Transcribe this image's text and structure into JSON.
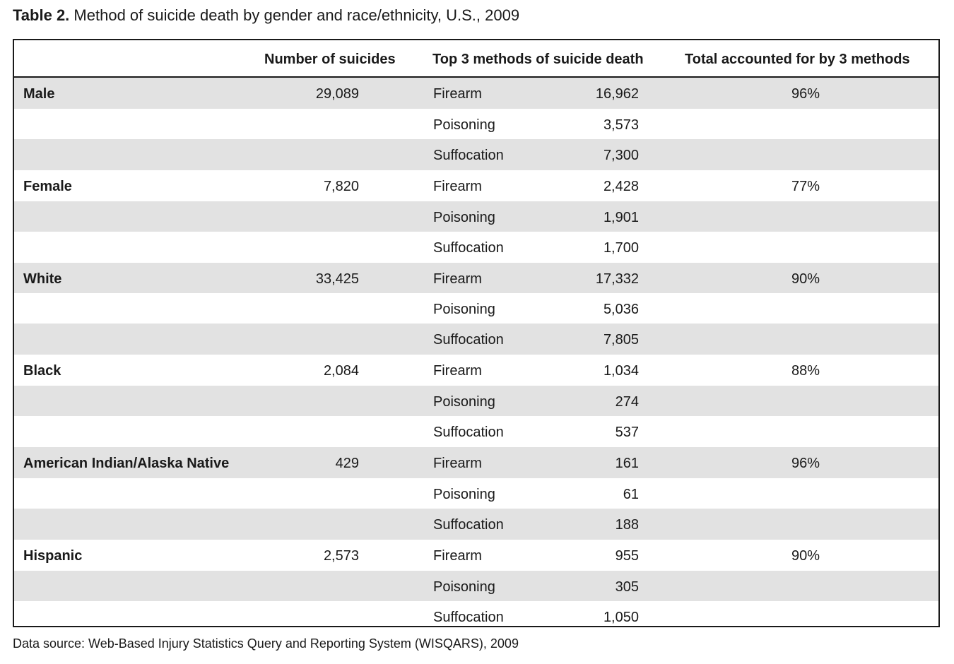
{
  "title": {
    "label": "Table 2.",
    "text": "Method of suicide death by gender and race/ethnicity, U.S., 2009"
  },
  "headers": {
    "number": "Number of suicides",
    "methods": "Top 3 methods of suicide death",
    "total": "Total accounted for by 3 methods"
  },
  "groups": [
    {
      "name": "Male",
      "number": "29,089",
      "total": "96%",
      "methods": [
        {
          "method": "Firearm",
          "count": "16,962"
        },
        {
          "method": "Poisoning",
          "count": "3,573"
        },
        {
          "method": "Suffocation",
          "count": "7,300"
        }
      ]
    },
    {
      "name": "Female",
      "number": "7,820",
      "total": "77%",
      "methods": [
        {
          "method": "Firearm",
          "count": "2,428"
        },
        {
          "method": "Poisoning",
          "count": "1,901"
        },
        {
          "method": "Suffocation",
          "count": "1,700"
        }
      ]
    },
    {
      "name": "White",
      "number": "33,425",
      "total": "90%",
      "methods": [
        {
          "method": "Firearm",
          "count": "17,332"
        },
        {
          "method": "Poisoning",
          "count": "5,036"
        },
        {
          "method": "Suffocation",
          "count": "7,805"
        }
      ]
    },
    {
      "name": "Black",
      "number": "2,084",
      "total": "88%",
      "methods": [
        {
          "method": "Firearm",
          "count": "1,034"
        },
        {
          "method": "Poisoning",
          "count": "274"
        },
        {
          "method": "Suffocation",
          "count": "537"
        }
      ]
    },
    {
      "name": "American Indian/Alaska Native",
      "number": "429",
      "total": "96%",
      "methods": [
        {
          "method": "Firearm",
          "count": "161"
        },
        {
          "method": "Poisoning",
          "count": "61"
        },
        {
          "method": "Suffocation",
          "count": "188"
        }
      ]
    },
    {
      "name": "Hispanic",
      "number": "2,573",
      "total": "90%",
      "methods": [
        {
          "method": "Firearm",
          "count": "955"
        },
        {
          "method": "Poisoning",
          "count": "305"
        },
        {
          "method": "Suffocation",
          "count": "1,050"
        }
      ]
    }
  ],
  "source": "Data source: Web-Based Injury Statistics Query and Reporting System (WISQARS), 2009",
  "colors": {
    "shade": "#e2e2e2",
    "text": "#1a1a1a",
    "border": "#1a1a1a"
  }
}
